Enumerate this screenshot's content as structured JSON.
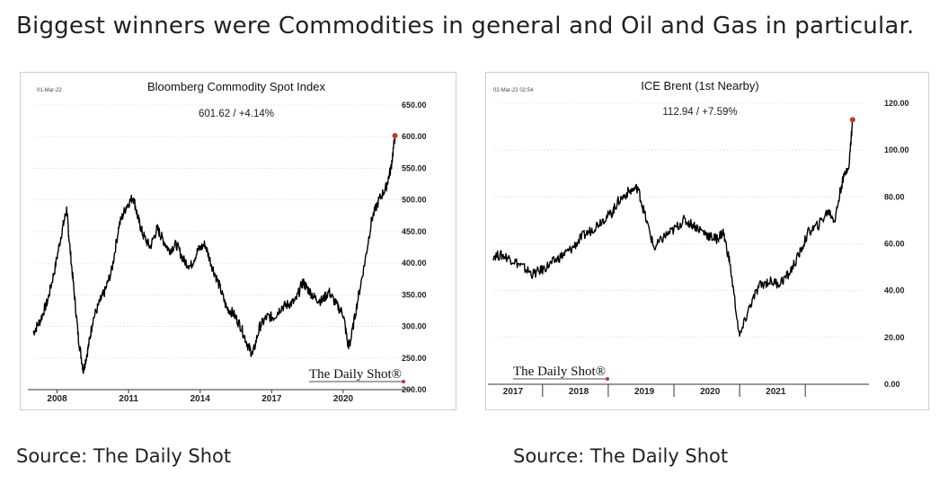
{
  "headline": "Biggest winners were Commodities in general and Oil and Gas in particular.",
  "sources": [
    "Source: The Daily Shot",
    "Source: The Daily Shot"
  ],
  "brand": "The Daily Shot®",
  "chart_data": [
    {
      "type": "line",
      "title": "Bloomberg Commodity Spot Index",
      "date_stamp": "01-Mar-22",
      "stat": "601.62  /  +4.14%",
      "ylim": [
        200,
        650
      ],
      "yticks": [
        "650.00",
        "600.00",
        "550.00",
        "500.00",
        "450.00",
        "400.00",
        "350.00",
        "300.00",
        "250.00",
        "200.00"
      ],
      "xlim": [
        2007.0,
        2022.3
      ],
      "xticks": [
        {
          "v": 2008,
          "label": "2008"
        },
        {
          "v": 2011,
          "label": "2011"
        },
        {
          "v": 2014,
          "label": "2014"
        },
        {
          "v": 2017,
          "label": "2017"
        },
        {
          "v": 2020,
          "label": "2020"
        }
      ],
      "grid": true,
      "series": [
        {
          "x": [
            2007.0,
            2007.3,
            2007.6,
            2007.9,
            2008.2,
            2008.4,
            2008.5,
            2008.7,
            2008.9,
            2009.1,
            2009.3,
            2009.5,
            2009.8,
            2010.0,
            2010.3,
            2010.6,
            2010.9,
            2011.2,
            2011.4,
            2011.6,
            2011.9,
            2012.2,
            2012.4,
            2012.7,
            2013.0,
            2013.3,
            2013.6,
            2013.9,
            2014.2,
            2014.5,
            2014.8,
            2015.1,
            2015.4,
            2015.7,
            2016.0,
            2016.2,
            2016.5,
            2016.8,
            2017.1,
            2017.4,
            2017.7,
            2018.0,
            2018.3,
            2018.5,
            2018.8,
            2019.1,
            2019.4,
            2019.7,
            2020.0,
            2020.2,
            2020.3,
            2020.6,
            2020.9,
            2021.2,
            2021.5,
            2021.8,
            2022.0,
            2022.17
          ],
          "y": [
            290,
            310,
            340,
            390,
            450,
            485,
            440,
            360,
            280,
            230,
            265,
            310,
            340,
            355,
            390,
            460,
            490,
            505,
            470,
            445,
            425,
            455,
            440,
            420,
            430,
            405,
            395,
            420,
            430,
            395,
            365,
            330,
            320,
            300,
            270,
            255,
            300,
            315,
            315,
            330,
            335,
            340,
            370,
            360,
            345,
            340,
            355,
            335,
            320,
            270,
            275,
            340,
            400,
            470,
            500,
            520,
            550,
            600
          ],
          "endpoint": {
            "x": 2022.17,
            "y": 601.62
          }
        }
      ]
    },
    {
      "type": "line",
      "title": "ICE Brent (1st Nearby)",
      "date_stamp": "02-Mar-22 02:54",
      "stat": "112.94  /  +7.59%",
      "ylim": [
        0,
        120
      ],
      "yticks": [
        "120.00",
        "100.00",
        "80.00",
        "60.00",
        "40.00",
        "20.00",
        "0.00"
      ],
      "xlim": [
        2016.7,
        2022.2
      ],
      "xticks": [
        {
          "v": 2017,
          "label": "2017"
        },
        {
          "v": 2018,
          "label": "2018"
        },
        {
          "v": 2019,
          "label": "2019"
        },
        {
          "v": 2020,
          "label": "2020"
        },
        {
          "v": 2021,
          "label": "2021"
        }
      ],
      "xdividers": [
        2017.45,
        2018.45,
        2019.45,
        2020.45,
        2021.45
      ],
      "grid": true,
      "series": [
        {
          "x": [
            2016.7,
            2016.85,
            2017.0,
            2017.15,
            2017.3,
            2017.45,
            2017.6,
            2017.75,
            2017.9,
            2018.05,
            2018.2,
            2018.35,
            2018.5,
            2018.6,
            2018.75,
            2018.9,
            2019.0,
            2019.15,
            2019.3,
            2019.45,
            2019.6,
            2019.75,
            2019.9,
            2020.0,
            2020.1,
            2020.2,
            2020.3,
            2020.45,
            2020.6,
            2020.75,
            2020.9,
            2021.05,
            2021.2,
            2021.35,
            2021.5,
            2021.65,
            2021.8,
            2021.9,
            2022.0,
            2022.12,
            2022.17
          ],
          "y": [
            55,
            55,
            53,
            50,
            47,
            49,
            52,
            55,
            58,
            63,
            66,
            70,
            73,
            78,
            82,
            84,
            73,
            58,
            63,
            66,
            70,
            68,
            65,
            63,
            62,
            65,
            52,
            20,
            33,
            42,
            44,
            43,
            47,
            55,
            65,
            68,
            74,
            70,
            85,
            95,
            113
          ],
          "endpoint": {
            "x": 2022.17,
            "y": 112.94
          }
        }
      ]
    }
  ]
}
